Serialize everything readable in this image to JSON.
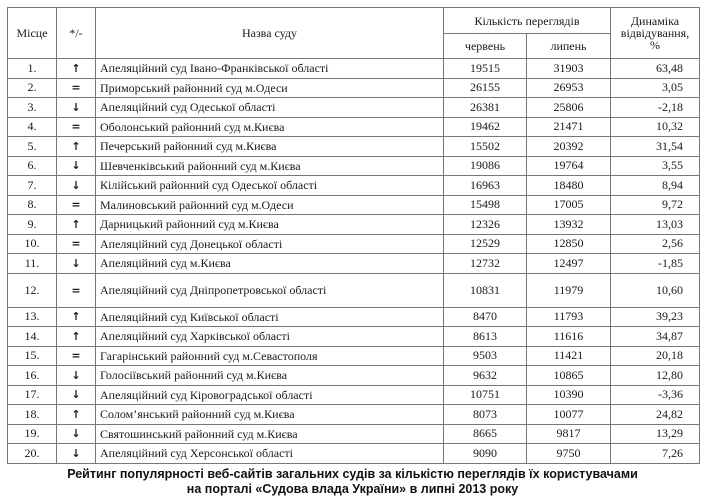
{
  "headers": {
    "place": "Місце",
    "change": "*/-",
    "name": "Назва суду",
    "views": "Кількість переглядів",
    "june": "червень",
    "july": "липень",
    "dynamics": "Динаміка відвідування, %"
  },
  "icons": {
    "up": "arrow-up-icon",
    "down": "arrow-down-icon",
    "same": "equals"
  },
  "rows": [
    {
      "place": "1.",
      "trend": "up",
      "name": "Апеляційний суд Івано-Франківської області",
      "june": "19515",
      "july": "31903",
      "dyn": "63,48"
    },
    {
      "place": "2.",
      "trend": "same",
      "name": "Приморський районний суд м.Одеси",
      "june": "26155",
      "july": "26953",
      "dyn": "3,05"
    },
    {
      "place": "3.",
      "trend": "down",
      "name": "Апеляційний суд Одеської області",
      "june": "26381",
      "july": "25806",
      "dyn": "-2,18"
    },
    {
      "place": "4.",
      "trend": "same",
      "name": "Оболонський районний суд м.Києва",
      "june": "19462",
      "july": "21471",
      "dyn": "10,32"
    },
    {
      "place": "5.",
      "trend": "up",
      "name": "Печерський районний суд м.Києва",
      "june": "15502",
      "july": "20392",
      "dyn": "31,54"
    },
    {
      "place": "6.",
      "trend": "down",
      "name": "Шевченківський районний суд м.Києва",
      "june": "19086",
      "july": "19764",
      "dyn": "3,55"
    },
    {
      "place": "7.",
      "trend": "down",
      "name": "Кілійський районний суд Одеської області",
      "june": "16963",
      "july": "18480",
      "dyn": "8,94"
    },
    {
      "place": "8.",
      "trend": "same",
      "name": "Малиновський районний суд м.Одеси",
      "june": "15498",
      "july": "17005",
      "dyn": "9,72"
    },
    {
      "place": "9.",
      "trend": "up",
      "name": "Дарницький районний суд м.Києва",
      "june": "12326",
      "july": "13932",
      "dyn": "13,03"
    },
    {
      "place": "10.",
      "trend": "same",
      "name": "Апеляційний суд Донецької області",
      "june": "12529",
      "july": "12850",
      "dyn": "2,56"
    },
    {
      "place": "11.",
      "trend": "down",
      "name": "Апеляційний суд м.Києва",
      "june": "12732",
      "july": "12497",
      "dyn": "-1,85"
    },
    {
      "place": "12.",
      "trend": "same",
      "name": "Апеляційний суд Дніпропетровської області",
      "june": "10831",
      "july": "11979",
      "dyn": "10,60"
    },
    {
      "place": "13.",
      "trend": "up",
      "name": "Апеляційний суд Київської області",
      "june": "8470",
      "july": "11793",
      "dyn": "39,23"
    },
    {
      "place": "14.",
      "trend": "up",
      "name": "Апеляційний суд Харківської області",
      "june": "8613",
      "july": "11616",
      "dyn": "34,87"
    },
    {
      "place": "15.",
      "trend": "same",
      "name": "Гагарінський районний суд м.Севастополя",
      "june": "9503",
      "july": "11421",
      "dyn": "20,18"
    },
    {
      "place": "16.",
      "trend": "down",
      "name": "Голосіївський районний суд м.Києва",
      "june": "9632",
      "july": "10865",
      "dyn": "12,80"
    },
    {
      "place": "17.",
      "trend": "down",
      "name": "Апеляційний суд Кіровоградської області",
      "june": "10751",
      "july": "10390",
      "dyn": "-3,36"
    },
    {
      "place": "18.",
      "trend": "up",
      "name": "Солом’янський районний суд м.Києва",
      "june": "8073",
      "july": "10077",
      "dyn": "24,82"
    },
    {
      "place": "19.",
      "trend": "down",
      "name": "Святошинський районний суд м.Києва",
      "june": "8665",
      "july": "9817",
      "dyn": "13,29"
    },
    {
      "place": "20.",
      "trend": "down",
      "name": "Апеляційний суд Херсонської області",
      "june": "9090",
      "july": "9750",
      "dyn": "7,26"
    }
  ],
  "caption": {
    "line1": "Рейтинг популярності веб-сайтів загальних судів за кількістю переглядів їх користувачами",
    "line2": "на порталі «Судова влада України» в липні 2013 року"
  }
}
